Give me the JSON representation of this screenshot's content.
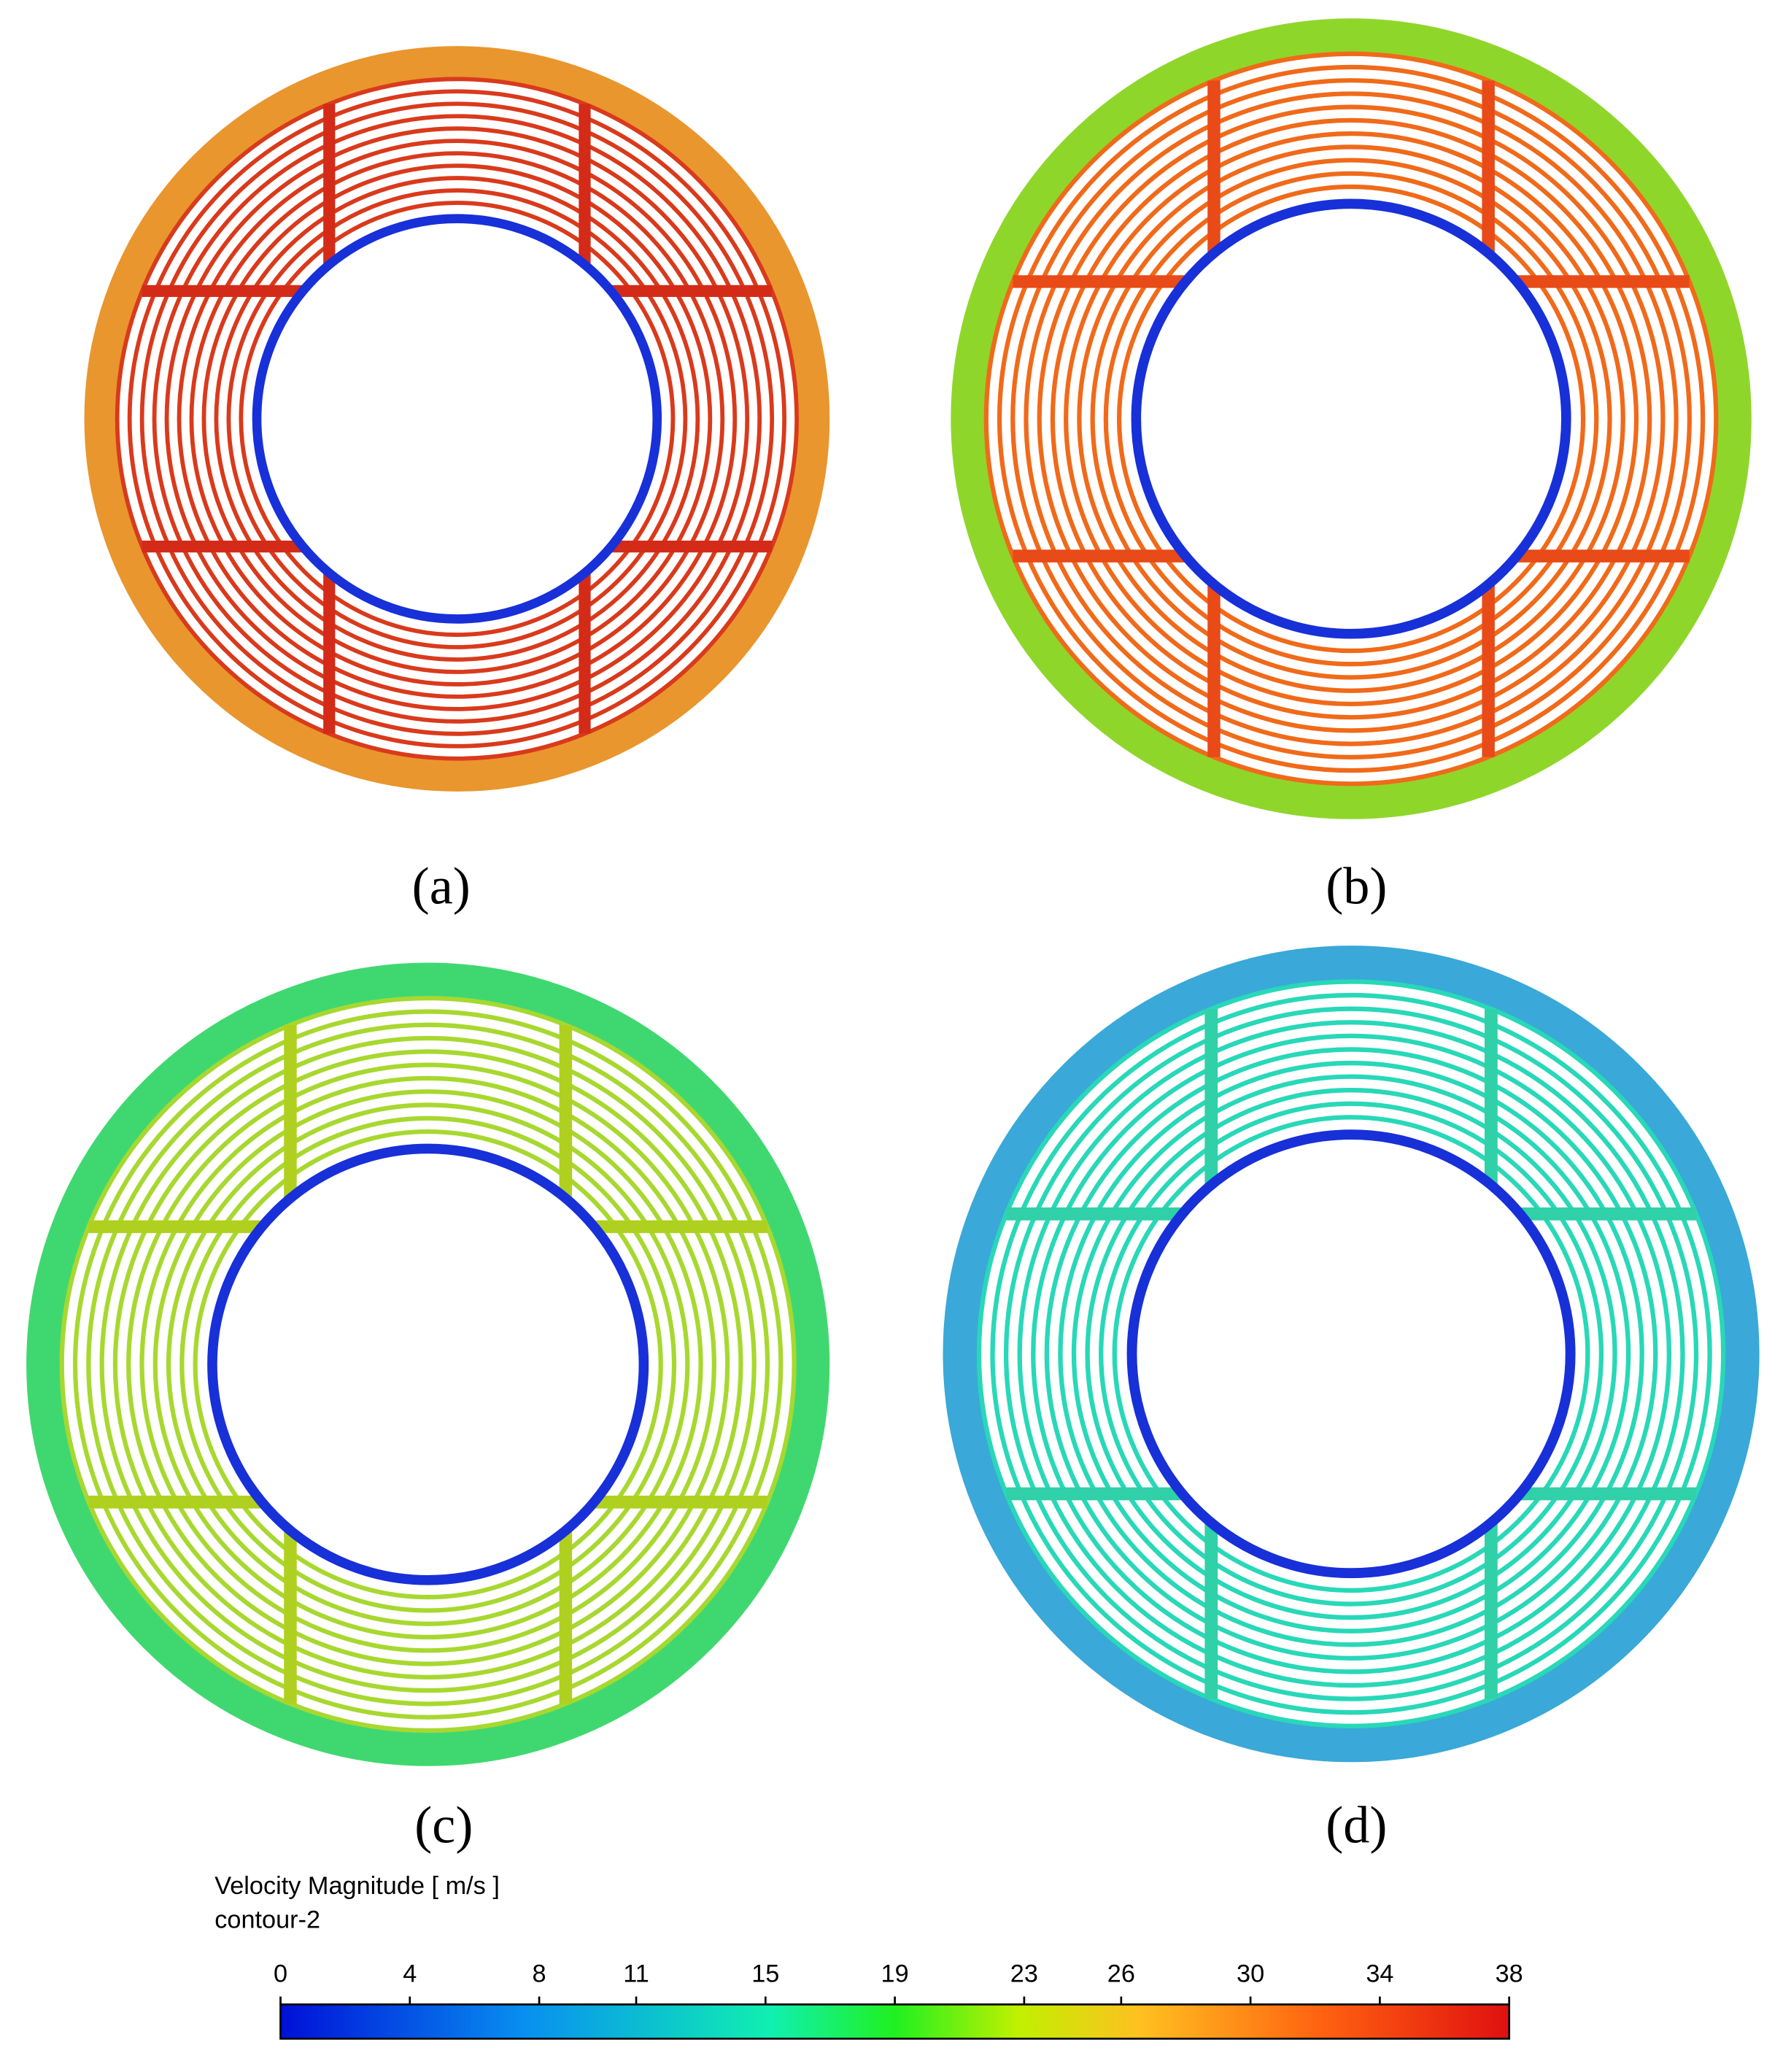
{
  "panels": [
    {
      "label": "(a)"
    },
    {
      "label": "(b)"
    },
    {
      "label": "(c)"
    },
    {
      "label": "(d)"
    }
  ],
  "colorbar": {
    "title": "Velocity Magnitude [ m/s ]",
    "subtitle": "contour-2",
    "range": [
      0,
      38
    ],
    "ticks": [
      0,
      4,
      8,
      11,
      15,
      19,
      23,
      26,
      30,
      34,
      38
    ]
  }
}
